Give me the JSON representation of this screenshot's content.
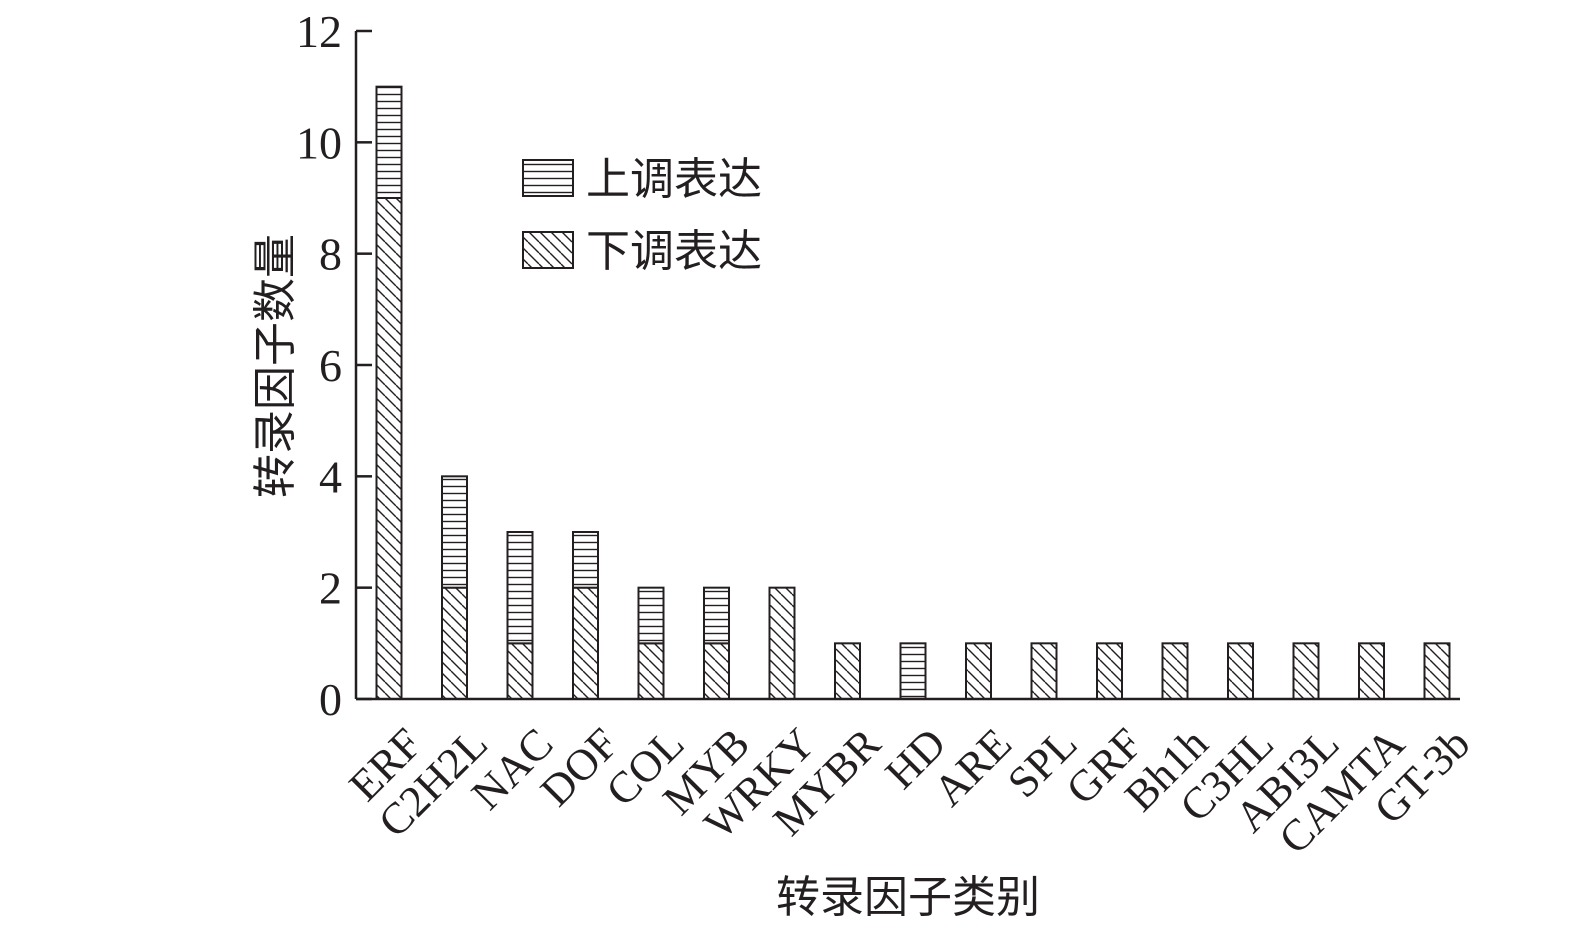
{
  "chart_data": {
    "type": "bar",
    "stacked": true,
    "categories": [
      "ERF",
      "C2H2L",
      "NAC",
      "DOF",
      "COL",
      "MYB",
      "WRKY",
      "MYBR",
      "HD",
      "ARE",
      "SPL",
      "GRF",
      "Bh1h",
      "C3HL",
      "ABI3L",
      "CAMTA",
      "GT-3b"
    ],
    "series": [
      {
        "name": "下调表达",
        "pattern": "diagonal-hatch",
        "values": [
          9,
          2,
          1,
          2,
          1,
          1,
          2,
          1,
          0,
          1,
          1,
          1,
          1,
          1,
          1,
          1,
          1
        ]
      },
      {
        "name": "上调表达",
        "pattern": "horizontal-hatch",
        "values": [
          2,
          2,
          2,
          1,
          1,
          1,
          0,
          0,
          1,
          0,
          0,
          0,
          0,
          0,
          0,
          0,
          0
        ]
      }
    ],
    "xlabel": "转录因子类别",
    "ylabel": "转录因子数量",
    "ylim": [
      0,
      12
    ],
    "yticks": [
      0,
      2,
      4,
      6,
      8,
      10,
      12
    ],
    "legend_position": "top-center",
    "legend_order": [
      "上调表达",
      "下调表达"
    ],
    "grid": false,
    "colors": {
      "stroke": "#231f20",
      "fill": "#ffffff"
    }
  }
}
